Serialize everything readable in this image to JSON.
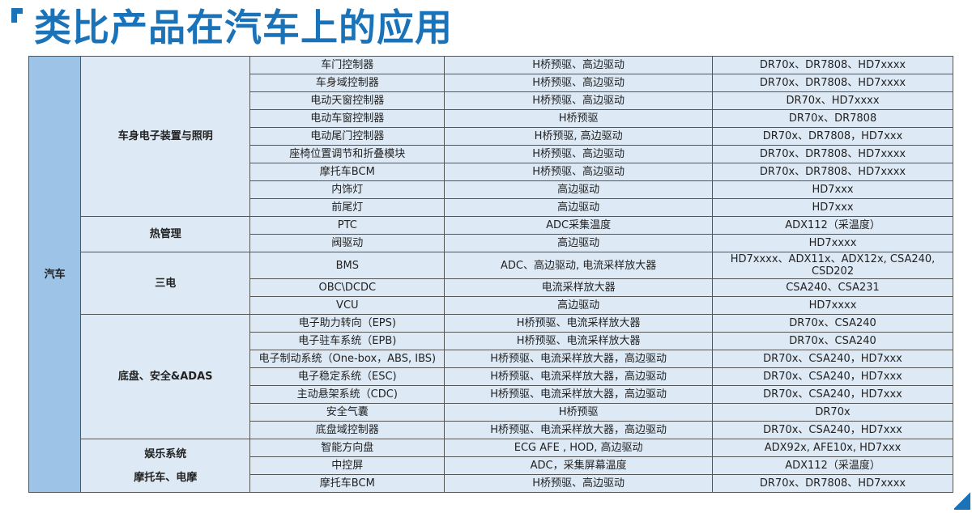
{
  "title": "类比产品在汽车上的应用",
  "domain_label": "汽车",
  "groups": [
    {
      "name": "车身电子装置与照明",
      "rows": [
        [
          "车门控制器",
          "H桥预驱、高边驱动",
          "DR70x、DR7808、HD7xxxx"
        ],
        [
          "车身域控制器",
          "H桥预驱、高边驱动",
          "DR70x、DR7808、HD7xxxx"
        ],
        [
          "电动天窗控制器",
          "H桥预驱、高边驱动",
          "DR70x、HD7xxxx"
        ],
        [
          "电动车窗控制器",
          "H桥预驱",
          "DR70x、DR7808"
        ],
        [
          "电动尾门控制器",
          "H桥预驱, 高边驱动",
          "DR70x、DR7808，HD7xxx"
        ],
        [
          "座椅位置调节和折叠模块",
          "H桥预驱、高边驱动",
          "DR70x、DR7808、HD7xxxx"
        ],
        [
          "摩托车BCM",
          "H桥预驱、高边驱动",
          "DR70x、DR7808、HD7xxxx"
        ],
        [
          "内饰灯",
          "高边驱动",
          "HD7xxx"
        ],
        [
          "前尾灯",
          "高边驱动",
          "HD7xxx"
        ]
      ]
    },
    {
      "name": "热管理",
      "rows": [
        [
          "PTC",
          "ADC采集温度",
          "ADX112（采温度）"
        ],
        [
          "阀驱动",
          "高边驱动",
          "HD7xxxx"
        ]
      ]
    },
    {
      "name": "三电",
      "rows": [
        [
          "BMS",
          "ADC、高边驱动, 电流采样放大器",
          "HD7xxxx、ADX11x、ADX12x, CSA240, CSD202"
        ],
        [
          "OBC\\DCDC",
          "电流采样放大器",
          "CSA240、CSA231"
        ],
        [
          "VCU",
          "高边驱动",
          "HD7xxxx"
        ]
      ]
    },
    {
      "name": "底盘、安全&ADAS",
      "rows": [
        [
          "电子助力转向（EPS)",
          "H桥预驱、电流采样放大器",
          "DR70x、CSA240"
        ],
        [
          "电子驻车系统（EPB)",
          "H桥预驱、电流采样放大器",
          "DR70x、CSA240"
        ],
        [
          "电子制动系统（One-box，ABS, IBS)",
          "H桥预驱、电流采样放大器，高边驱动",
          "DR70x、CSA240，HD7xxx"
        ],
        [
          "电子稳定系统（ESC)",
          "H桥预驱、电流采样放大器，高边驱动",
          "DR70x、CSA240，HD7xxx"
        ],
        [
          "主动悬架系统（CDC)",
          "H桥预驱、电流采样放大器，高边驱动",
          "DR70x、CSA240，HD7xxx"
        ],
        [
          "安全气囊",
          "H桥预驱",
          "DR70x"
        ],
        [
          "底盘域控制器",
          "H桥预驱、电流采样放大器，高边驱动",
          "DR70x、CSA240，HD7xxx"
        ]
      ]
    },
    {
      "name": "娱乐系统",
      "name2": "摩托车、电摩",
      "rows": [
        [
          "智能方向盘",
          "ECG AFE , HOD, 高边驱动",
          "ADX92x, AFE10x, HD7xxx"
        ],
        [
          "中控屏",
          "ADC，采集屏幕温度",
          "ADX112（采温度）"
        ],
        [
          "摩托车BCM",
          "H桥预驱、高边驱动",
          "DR70x、DR7808、HD7xxxx"
        ]
      ]
    }
  ],
  "colors": {
    "accent": "#1a73b8",
    "domain_cell": "#9dc3e6",
    "cell": "#dde9f5"
  }
}
